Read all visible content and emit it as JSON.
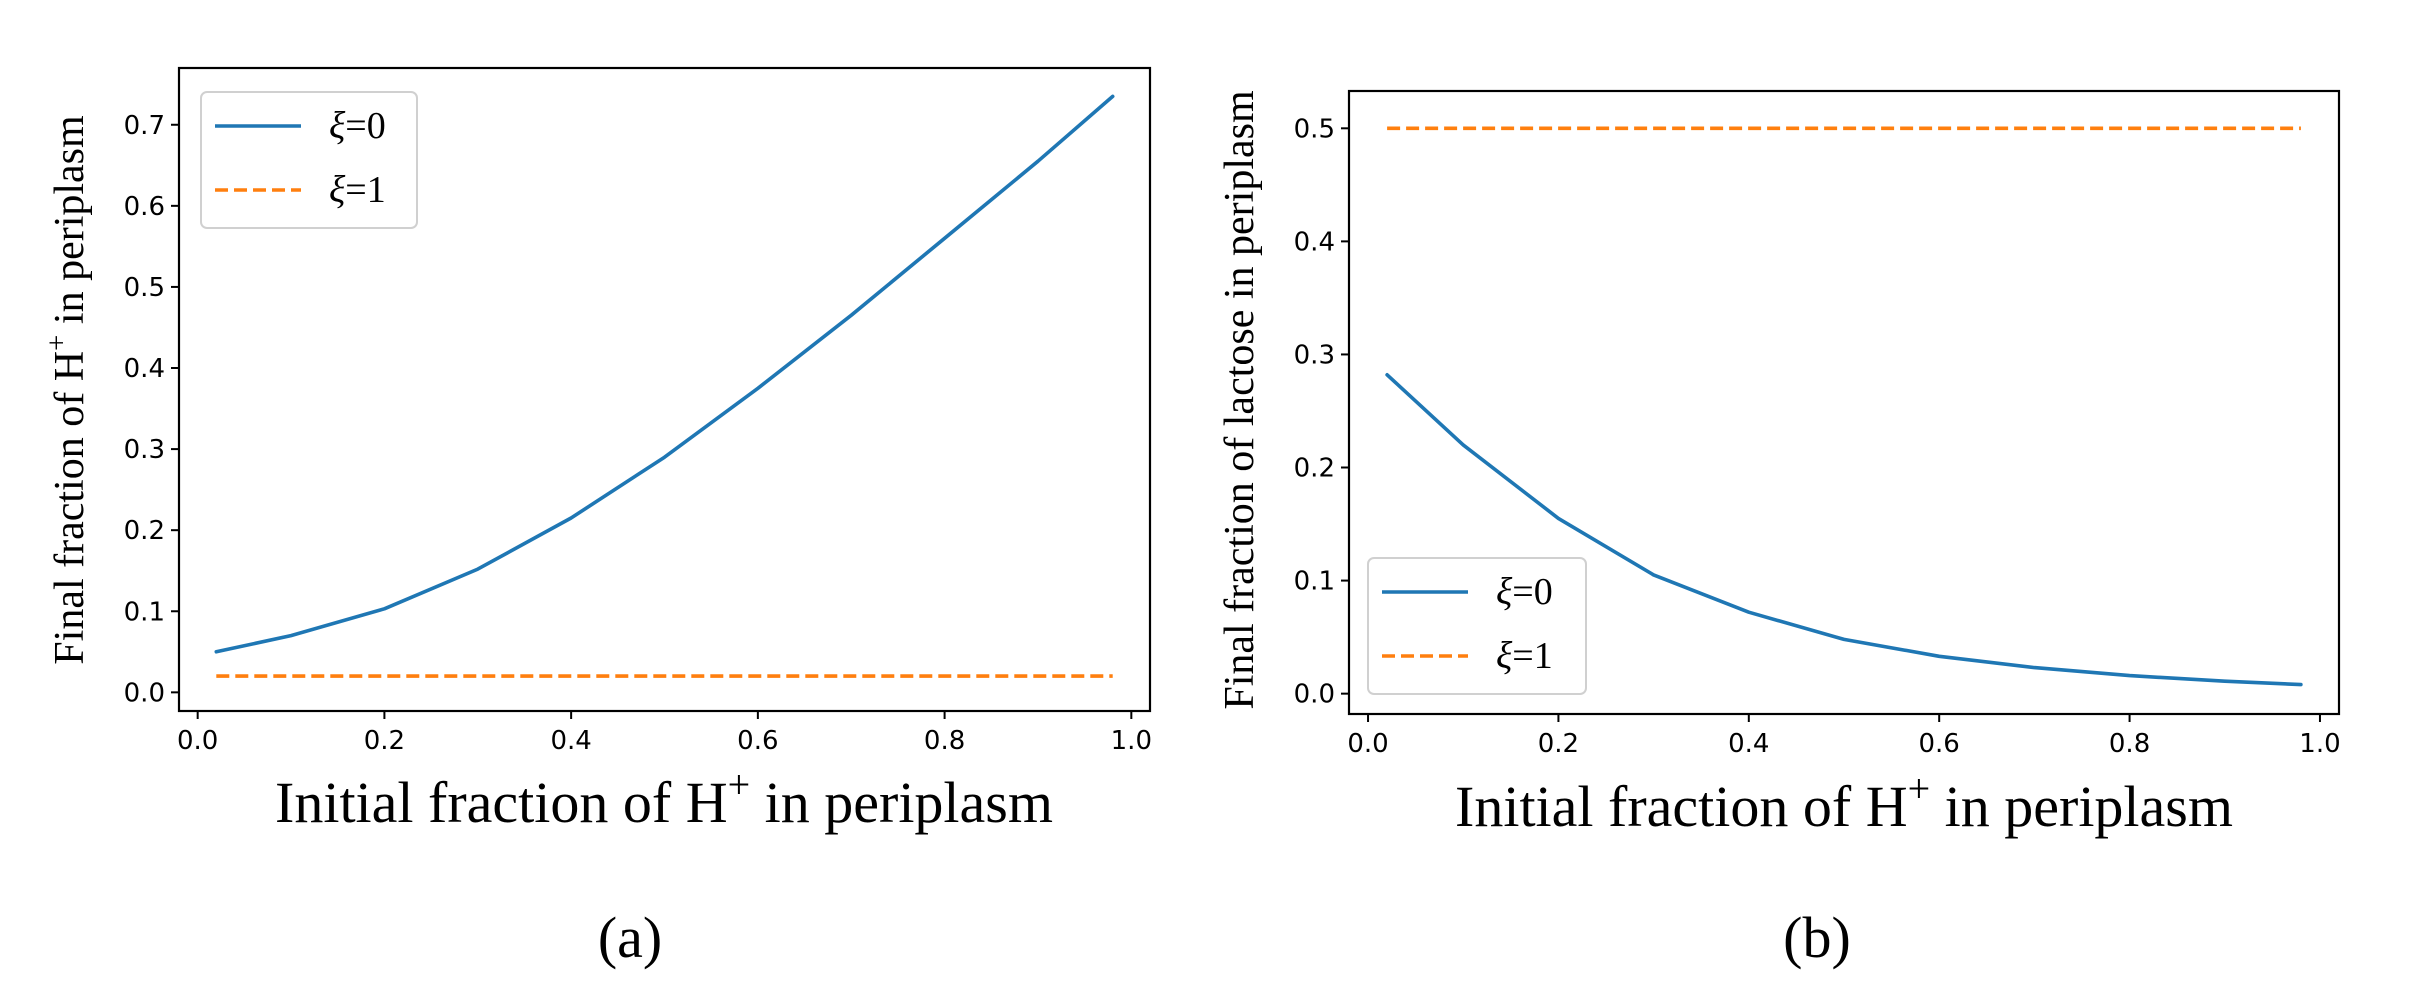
{
  "chart_data": [
    {
      "type": "line",
      "panel_label": "(a)",
      "xlabel": "Initial fraction of H",
      "xlabel_sup": "+",
      "xlabel_tail": " in periplasm",
      "ylabel": "Final fraction of H",
      "ylabel_sup": "+",
      "ylabel_tail": " in periplasm",
      "xlim": [
        -0.02,
        1.02
      ],
      "ylim": [
        -0.023,
        0.77
      ],
      "xticks": [
        "0.0",
        "0.2",
        "0.4",
        "0.6",
        "0.8",
        "1.0"
      ],
      "xtick_values": [
        0.0,
        0.2,
        0.4,
        0.6,
        0.8,
        1.0
      ],
      "yticks": [
        "0.0",
        "0.1",
        "0.2",
        "0.3",
        "0.4",
        "0.5",
        "0.6",
        "0.7"
      ],
      "ytick_values": [
        0.0,
        0.1,
        0.2,
        0.3,
        0.4,
        0.5,
        0.6,
        0.7
      ],
      "legend_position": "upper-left",
      "grid": false,
      "series": [
        {
          "name": "ξ=0",
          "name_symbol": "ξ",
          "name_value": "=0",
          "color": "#1f77b4",
          "style": "solid",
          "x": [
            0.02,
            0.1,
            0.2,
            0.3,
            0.4,
            0.5,
            0.6,
            0.7,
            0.8,
            0.9,
            0.98
          ],
          "y": [
            0.05,
            0.07,
            0.103,
            0.152,
            0.215,
            0.29,
            0.375,
            0.465,
            0.56,
            0.655,
            0.735
          ]
        },
        {
          "name": "ξ=1",
          "name_symbol": "ξ",
          "name_value": "=1",
          "color": "#ff7f0e",
          "style": "dashed",
          "x": [
            0.02,
            0.98
          ],
          "y": [
            0.02,
            0.02
          ]
        }
      ]
    },
    {
      "type": "line",
      "panel_label": "(b)",
      "xlabel": "Initial fraction of H",
      "xlabel_sup": "+",
      "xlabel_tail": " in periplasm",
      "ylabel": "Final fraction of lactose in periplasm",
      "xlim": [
        -0.02,
        1.02
      ],
      "ylim": [
        -0.018,
        0.533
      ],
      "xticks": [
        "0.0",
        "0.2",
        "0.4",
        "0.6",
        "0.8",
        "1.0"
      ],
      "xtick_values": [
        0.0,
        0.2,
        0.4,
        0.6,
        0.8,
        1.0
      ],
      "yticks": [
        "0.0",
        "0.1",
        "0.2",
        "0.3",
        "0.4",
        "0.5"
      ],
      "ytick_values": [
        0.0,
        0.1,
        0.2,
        0.3,
        0.4,
        0.5
      ],
      "legend_position": "lower-left",
      "grid": false,
      "series": [
        {
          "name": "ξ=0",
          "name_symbol": "ξ",
          "name_value": "=0",
          "color": "#1f77b4",
          "style": "solid",
          "x": [
            0.02,
            0.1,
            0.2,
            0.3,
            0.4,
            0.5,
            0.6,
            0.7,
            0.8,
            0.9,
            0.98
          ],
          "y": [
            0.282,
            0.22,
            0.155,
            0.105,
            0.072,
            0.048,
            0.033,
            0.023,
            0.016,
            0.011,
            0.008
          ]
        },
        {
          "name": "ξ=1",
          "name_symbol": "ξ",
          "name_value": "=1",
          "color": "#ff7f0e",
          "style": "dashed",
          "x": [
            0.02,
            0.98
          ],
          "y": [
            0.5,
            0.5
          ]
        }
      ]
    }
  ]
}
